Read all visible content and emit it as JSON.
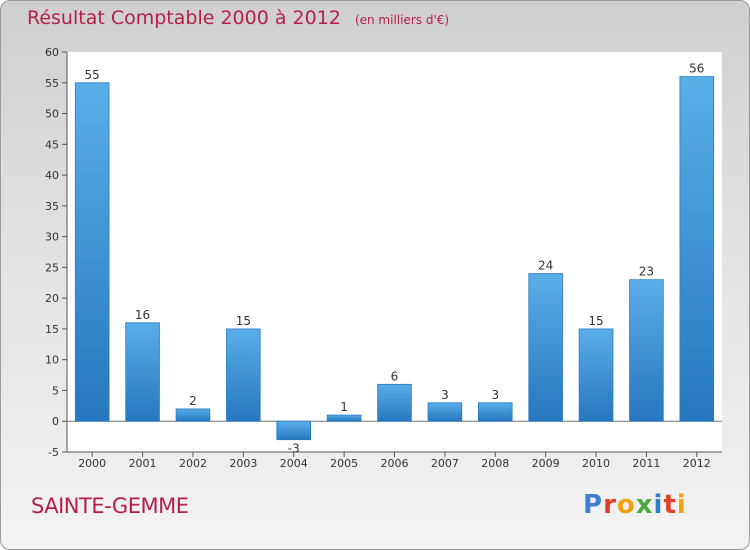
{
  "chart_data": {
    "type": "bar",
    "title": "Résultat Comptable 2000 à 2012",
    "subtitle": "(en milliers d'€)",
    "categories": [
      "2000",
      "2001",
      "2002",
      "2003",
      "2004",
      "2005",
      "2006",
      "2007",
      "2008",
      "2009",
      "2010",
      "2011",
      "2012"
    ],
    "values": [
      55,
      16,
      2,
      15,
      -3,
      1,
      6,
      3,
      3,
      24,
      15,
      23,
      56
    ],
    "labels": [
      "55",
      "16",
      "2",
      "15",
      "-3",
      "1",
      "6",
      "3",
      "3",
      "24",
      "15",
      "23",
      "56"
    ],
    "yticks": [
      -5,
      0,
      5,
      10,
      15,
      20,
      25,
      30,
      35,
      40,
      45,
      50,
      55,
      60
    ],
    "ylim": [
      -5,
      60
    ],
    "xlabel": "",
    "ylabel": "",
    "grid": false,
    "bar_color": "#3b8fd6",
    "bar_color_dark": "#2677bf"
  },
  "footer": {
    "commune": "SAINTE-GEMME",
    "brand_letters": [
      "P",
      "r",
      "o",
      "x",
      "i",
      "t",
      "i"
    ],
    "brand_colors": [
      "#3b7fd0",
      "#e23c2a",
      "#f2a10e",
      "#4aa83c",
      "#2f7cc7",
      "#e23c2a",
      "#f2a10e"
    ]
  }
}
